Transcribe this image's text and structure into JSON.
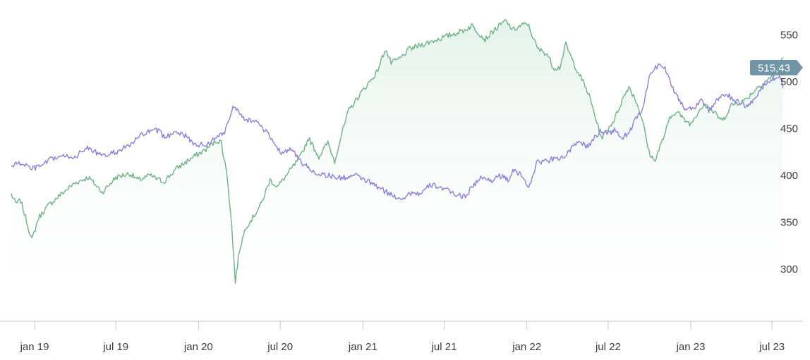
{
  "chart_data": {
    "type": "line",
    "title": "",
    "xlabel": "",
    "ylabel": "",
    "x_ticks": [
      "jan 19",
      "jul 19",
      "jan 20",
      "jul 20",
      "jan 21",
      "jul 21",
      "jan 22",
      "jul 22",
      "jan 23",
      "jul 23"
    ],
    "y_ticks": [
      300,
      350,
      400,
      450,
      500,
      550
    ],
    "y_tick_labels": [
      "300",
      "350",
      "400",
      "450",
      "500",
      "550"
    ],
    "ylim": [
      245,
      570
    ],
    "grid": false,
    "last_value_label": "515,43",
    "colors": {
      "green": "#6db383",
      "purple": "#8a7fe0",
      "badge": "#6f95a6",
      "area_top": "#e3f2ea"
    },
    "series": [
      {
        "color": "green",
        "fill": true,
        "points": [
          [
            "2018-11-10",
            380
          ],
          [
            "2018-11-20",
            370
          ],
          [
            "2018-12-01",
            373
          ],
          [
            "2018-12-12",
            355
          ],
          [
            "2018-12-26",
            331
          ],
          [
            "2019-01-10",
            355
          ],
          [
            "2019-02-01",
            368
          ],
          [
            "2019-03-01",
            380
          ],
          [
            "2019-04-01",
            392
          ],
          [
            "2019-05-01",
            398
          ],
          [
            "2019-06-01",
            382
          ],
          [
            "2019-07-01",
            398
          ],
          [
            "2019-08-01",
            402
          ],
          [
            "2019-08-20",
            395
          ],
          [
            "2019-09-15",
            400
          ],
          [
            "2019-10-15",
            393
          ],
          [
            "2019-11-15",
            408
          ],
          [
            "2019-12-15",
            418
          ],
          [
            "2020-01-15",
            427
          ],
          [
            "2020-02-10",
            437
          ],
          [
            "2020-02-20",
            436
          ],
          [
            "2020-03-05",
            400
          ],
          [
            "2020-03-15",
            345
          ],
          [
            "2020-03-23",
            287
          ],
          [
            "2020-04-01",
            320
          ],
          [
            "2020-04-15",
            345
          ],
          [
            "2020-05-01",
            355
          ],
          [
            "2020-05-20",
            370
          ],
          [
            "2020-06-08",
            395
          ],
          [
            "2020-06-25",
            388
          ],
          [
            "2020-07-15",
            400
          ],
          [
            "2020-08-15",
            420
          ],
          [
            "2020-09-02",
            440
          ],
          [
            "2020-09-25",
            420
          ],
          [
            "2020-10-15",
            435
          ],
          [
            "2020-10-30",
            415
          ],
          [
            "2020-11-15",
            445
          ],
          [
            "2020-12-01",
            470
          ],
          [
            "2020-12-31",
            490
          ],
          [
            "2021-02-01",
            510
          ],
          [
            "2021-02-20",
            535
          ],
          [
            "2021-03-05",
            520
          ],
          [
            "2021-03-25",
            525
          ],
          [
            "2021-04-15",
            535
          ],
          [
            "2021-05-15",
            540
          ],
          [
            "2021-06-15",
            545
          ],
          [
            "2021-07-15",
            550
          ],
          [
            "2021-08-15",
            555
          ],
          [
            "2021-09-01",
            560
          ],
          [
            "2021-09-30",
            545
          ],
          [
            "2021-10-20",
            555
          ],
          [
            "2021-11-15",
            565
          ],
          [
            "2021-12-01",
            555
          ],
          [
            "2021-12-20",
            560
          ],
          [
            "2022-01-03",
            562
          ],
          [
            "2022-01-25",
            535
          ],
          [
            "2022-02-15",
            530
          ],
          [
            "2022-03-01",
            515
          ],
          [
            "2022-03-15",
            515
          ],
          [
            "2022-03-29",
            540
          ],
          [
            "2022-04-15",
            520
          ],
          [
            "2022-05-01",
            505
          ],
          [
            "2022-05-20",
            485
          ],
          [
            "2022-06-16",
            440
          ],
          [
            "2022-07-01",
            450
          ],
          [
            "2022-07-15",
            460
          ],
          [
            "2022-08-01",
            480
          ],
          [
            "2022-08-16",
            495
          ],
          [
            "2022-09-01",
            480
          ],
          [
            "2022-09-15",
            460
          ],
          [
            "2022-09-30",
            425
          ],
          [
            "2022-10-12",
            415
          ],
          [
            "2022-11-01",
            440
          ],
          [
            "2022-11-15",
            460
          ],
          [
            "2022-12-01",
            470
          ],
          [
            "2022-12-15",
            460
          ],
          [
            "2023-01-01",
            455
          ],
          [
            "2023-01-20",
            470
          ],
          [
            "2023-02-02",
            478
          ],
          [
            "2023-02-20",
            468
          ],
          [
            "2023-03-13",
            458
          ],
          [
            "2023-04-01",
            475
          ],
          [
            "2023-05-01",
            480
          ],
          [
            "2023-06-01",
            495
          ],
          [
            "2023-06-30",
            505
          ],
          [
            "2023-07-15",
            515
          ],
          [
            "2023-07-27",
            528
          ],
          [
            "2023-08-10",
            512
          ],
          [
            "2023-08-25",
            515
          ]
        ]
      },
      {
        "color": "purple",
        "fill": false,
        "points": [
          [
            "2018-11-10",
            410
          ],
          [
            "2018-11-20",
            412
          ],
          [
            "2018-12-05",
            413
          ],
          [
            "2018-12-26",
            407
          ],
          [
            "2019-01-15",
            410
          ],
          [
            "2019-02-10",
            418
          ],
          [
            "2019-03-01",
            420
          ],
          [
            "2019-04-01",
            420
          ],
          [
            "2019-05-01",
            430
          ],
          [
            "2019-06-01",
            420
          ],
          [
            "2019-07-01",
            425
          ],
          [
            "2019-08-01",
            432
          ],
          [
            "2019-09-01",
            445
          ],
          [
            "2019-10-01",
            448
          ],
          [
            "2019-10-20",
            440
          ],
          [
            "2019-11-10",
            448
          ],
          [
            "2019-12-01",
            443
          ],
          [
            "2019-12-20",
            434
          ],
          [
            "2020-01-15",
            432
          ],
          [
            "2020-02-10",
            440
          ],
          [
            "2020-02-28",
            447
          ],
          [
            "2020-03-20",
            475
          ],
          [
            "2020-04-15",
            460
          ],
          [
            "2020-05-15",
            455
          ],
          [
            "2020-06-15",
            437
          ],
          [
            "2020-07-01",
            425
          ],
          [
            "2020-07-25",
            428
          ],
          [
            "2020-08-15",
            415
          ],
          [
            "2020-09-15",
            403
          ],
          [
            "2020-10-15",
            400
          ],
          [
            "2020-11-15",
            397
          ],
          [
            "2020-12-15",
            400
          ],
          [
            "2021-01-15",
            393
          ],
          [
            "2021-02-15",
            384
          ],
          [
            "2021-03-15",
            377
          ],
          [
            "2021-04-01",
            376
          ],
          [
            "2021-04-20",
            382
          ],
          [
            "2021-05-10",
            380
          ],
          [
            "2021-06-01",
            390
          ],
          [
            "2021-06-20",
            388
          ],
          [
            "2021-07-15",
            382
          ],
          [
            "2021-08-15",
            377
          ],
          [
            "2021-09-01",
            388
          ],
          [
            "2021-09-20",
            397
          ],
          [
            "2021-10-15",
            395
          ],
          [
            "2021-11-01",
            400
          ],
          [
            "2021-11-20",
            395
          ],
          [
            "2021-12-01",
            405
          ],
          [
            "2021-12-20",
            400
          ],
          [
            "2022-01-05",
            388
          ],
          [
            "2022-01-25",
            415
          ],
          [
            "2022-02-15",
            415
          ],
          [
            "2022-03-07",
            420
          ],
          [
            "2022-03-20",
            418
          ],
          [
            "2022-04-10",
            428
          ],
          [
            "2022-04-30",
            437
          ],
          [
            "2022-05-15",
            430
          ],
          [
            "2022-06-01",
            440
          ],
          [
            "2022-06-16",
            448
          ],
          [
            "2022-07-01",
            445
          ],
          [
            "2022-07-15",
            448
          ],
          [
            "2022-08-01",
            440
          ],
          [
            "2022-08-15",
            445
          ],
          [
            "2022-09-01",
            460
          ],
          [
            "2022-09-15",
            470
          ],
          [
            "2022-10-01",
            505
          ],
          [
            "2022-10-12",
            513
          ],
          [
            "2022-10-25",
            520
          ],
          [
            "2022-11-10",
            510
          ],
          [
            "2022-11-25",
            490
          ],
          [
            "2022-12-05",
            482
          ],
          [
            "2022-12-20",
            470
          ],
          [
            "2023-01-10",
            473
          ],
          [
            "2023-01-25",
            482
          ],
          [
            "2023-02-10",
            468
          ],
          [
            "2023-03-01",
            480
          ],
          [
            "2023-03-20",
            487
          ],
          [
            "2023-04-10",
            480
          ],
          [
            "2023-05-01",
            474
          ],
          [
            "2023-05-20",
            479
          ],
          [
            "2023-06-10",
            495
          ],
          [
            "2023-07-01",
            503
          ],
          [
            "2023-07-20",
            505
          ],
          [
            "2023-08-05",
            478
          ],
          [
            "2023-08-15",
            475
          ],
          [
            "2023-08-25",
            488
          ],
          [
            "2023-09-05",
            500
          ]
        ]
      }
    ]
  }
}
